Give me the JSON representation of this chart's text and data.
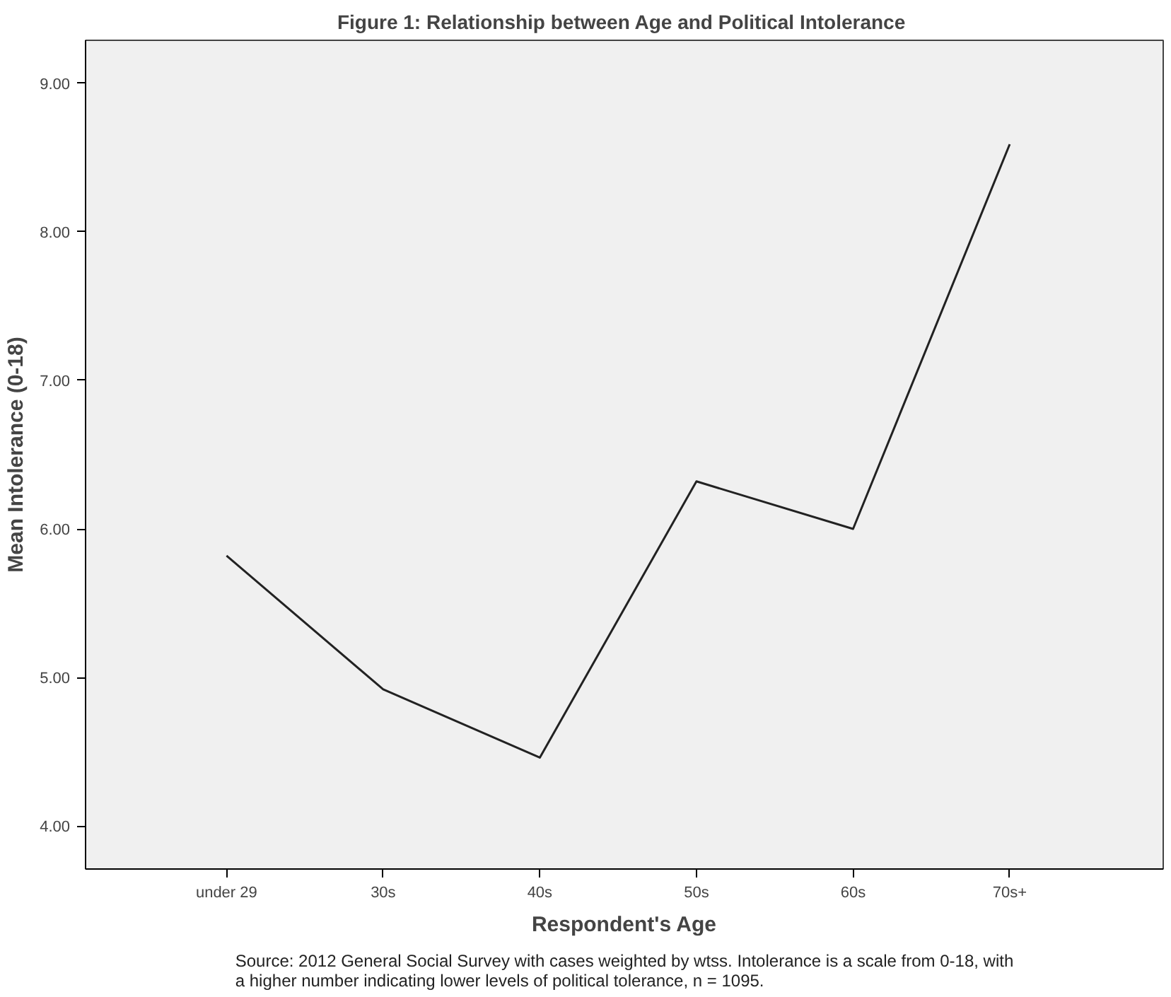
{
  "chart_data": {
    "type": "line",
    "title": "Figure 1:  Relationship between Age and Political Intolerance",
    "xlabel": "Respondent's Age",
    "ylabel": "Mean Intolerance (0-18)",
    "categories": [
      "under 29",
      "30s",
      "40s",
      "50s",
      "60s",
      "70s+"
    ],
    "series": [
      {
        "color": "#222222",
        "values": [
          5.82,
          4.92,
          4.46,
          6.32,
          6.0,
          8.59
        ]
      }
    ],
    "ylim": [
      3.71,
      9.29
    ],
    "yticks": [
      {
        "value": 4,
        "label": "4.00"
      },
      {
        "value": 5,
        "label": "5.00"
      },
      {
        "value": 6,
        "label": "6.00"
      },
      {
        "value": 7,
        "label": "7.00"
      },
      {
        "value": 8,
        "label": "8.00"
      },
      {
        "value": 9,
        "label": "9.00"
      }
    ],
    "grid": false,
    "marker": "none",
    "line_style": "solid",
    "annotations": [
      "Source: 2012 General Social Survey with cases weighted by wtss. Intolerance is a scale from 0-18, with\na higher number indicating lower levels of political tolerance, n = 1095."
    ]
  }
}
